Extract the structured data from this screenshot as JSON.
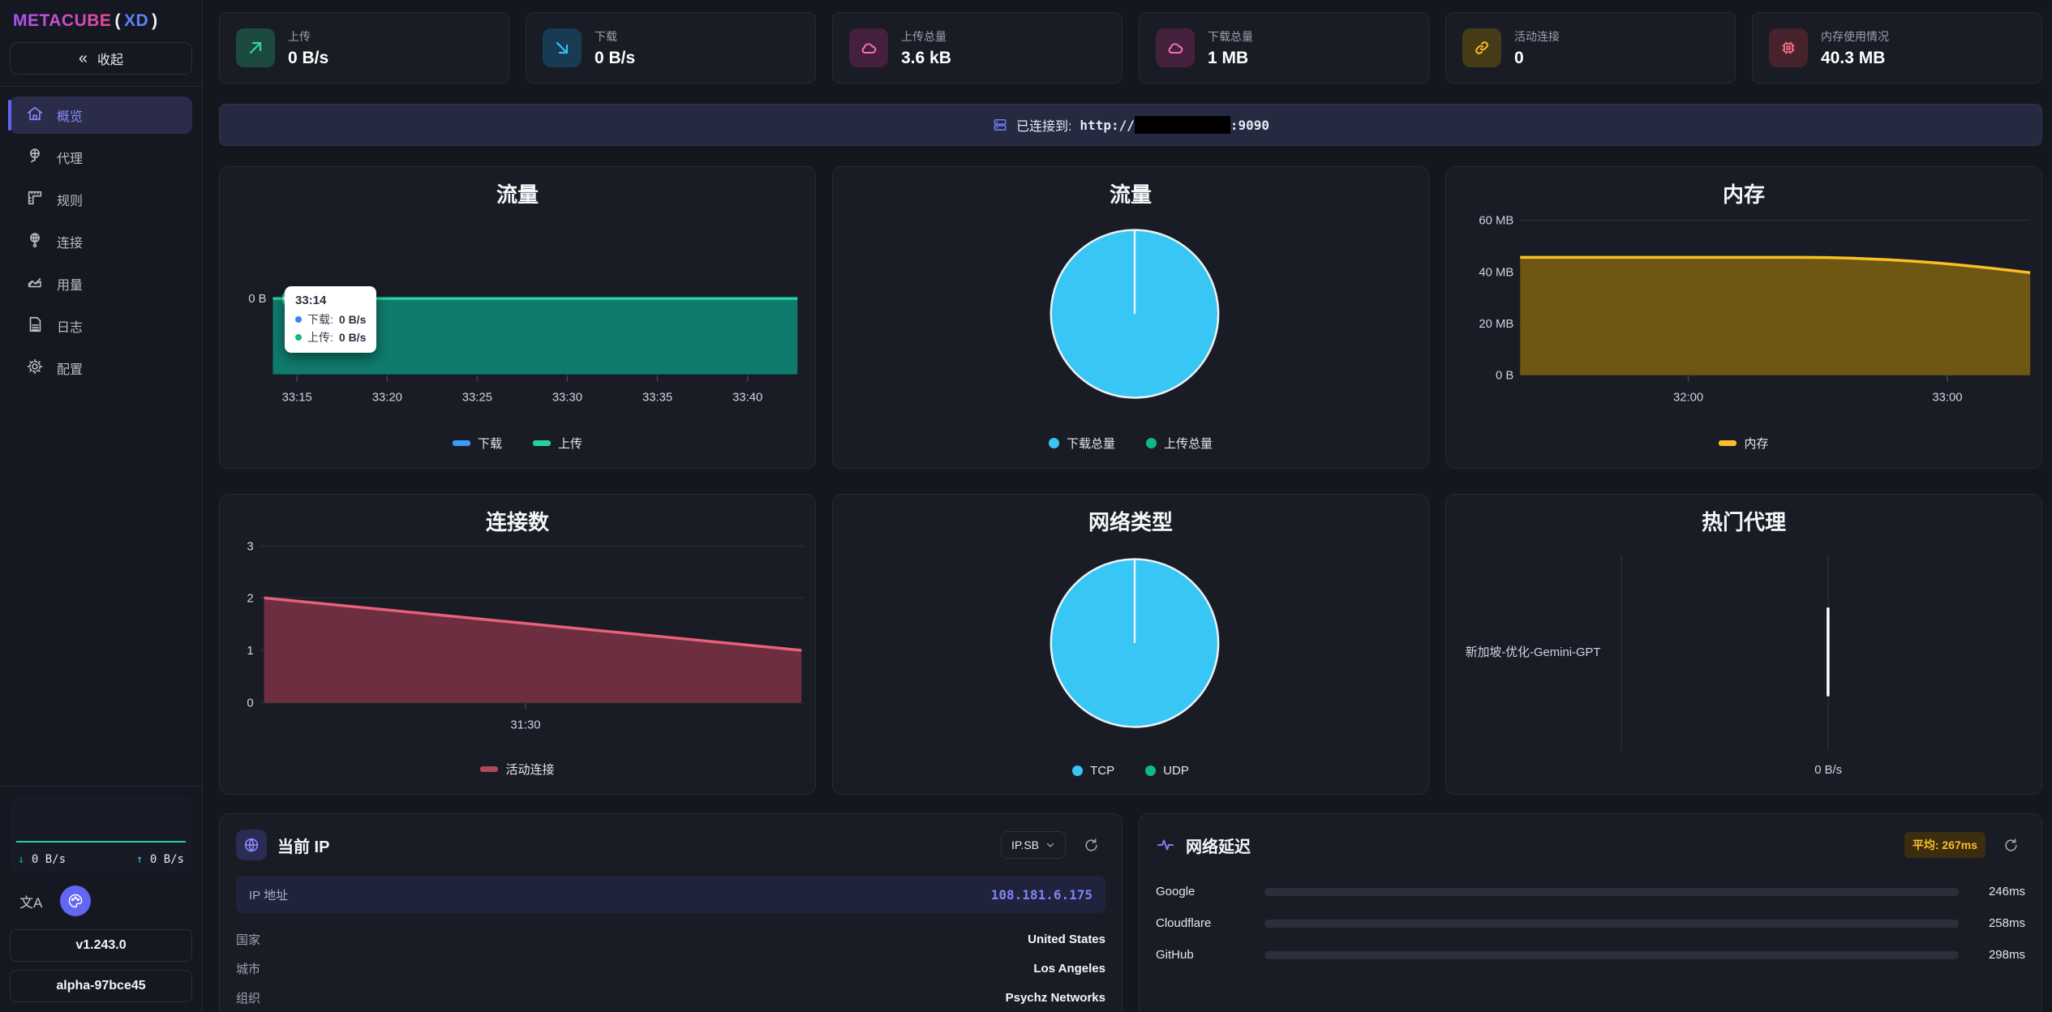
{
  "app": {
    "brand": "METACUBE",
    "paren_open": "(",
    "brand_suffix": "XD",
    "paren_close": ")"
  },
  "sidebar": {
    "collapse_icon": "«",
    "collapse_label": "收起",
    "items": [
      {
        "label": "概览",
        "active": true
      },
      {
        "label": "代理",
        "active": false
      },
      {
        "label": "规则",
        "active": false
      },
      {
        "label": "连接",
        "active": false
      },
      {
        "label": "用量",
        "active": false
      },
      {
        "label": "日志",
        "active": false
      },
      {
        "label": "配置",
        "active": false
      }
    ],
    "footer": {
      "down_arrow": "↓",
      "down_rate": "0 B/s",
      "up_arrow": "↑",
      "up_rate": "0 B/s",
      "lang_glyph": "文A",
      "version": "v1.243.0",
      "build": "alpha-97bce45"
    }
  },
  "stats": {
    "cards": [
      {
        "icon": "arrow-up-right",
        "label": "上传",
        "value": "0 B/s"
      },
      {
        "icon": "arrow-down-right",
        "label": "下载",
        "value": "0 B/s"
      },
      {
        "icon": "cloud",
        "label": "上传总量",
        "value": "3.6 kB"
      },
      {
        "icon": "cloud",
        "label": "下载总量",
        "value": "1 MB"
      },
      {
        "icon": "link",
        "label": "活动连接",
        "value": "0"
      },
      {
        "icon": "cpu",
        "label": "内存使用情况",
        "value": "40.3 MB"
      }
    ]
  },
  "connection": {
    "label": "已连接到:",
    "url_prefix": "http://",
    "url_suffix": ":9090"
  },
  "ip_card": {
    "title": "当前 IP",
    "provider": "IP.SB",
    "ip_label": "IP 地址",
    "ip": "108.181.6.175",
    "rows": [
      {
        "label": "国家",
        "value": "United States"
      },
      {
        "label": "城市",
        "value": "Los Angeles"
      },
      {
        "label": "组织",
        "value": "Psychz Networks"
      }
    ]
  },
  "latency": {
    "title": "网络延迟",
    "avg_badge": "平均: 267ms"
  },
  "chart_data": [
    {
      "type": "line",
      "title": "流量",
      "y_tick": "0 B",
      "x": [
        "33:15",
        "33:20",
        "33:25",
        "33:30",
        "33:35",
        "33:40"
      ],
      "series": [
        {
          "name": "下载",
          "color": "#3b9cf8",
          "values": [
            0,
            0,
            0,
            0,
            0,
            0
          ]
        },
        {
          "name": "上传",
          "color": "#25d0a2",
          "values": [
            0,
            0,
            0,
            0,
            0,
            0
          ]
        }
      ],
      "unit": "B/s",
      "tooltip": {
        "time": "33:14",
        "rows": [
          {
            "label": "下载:",
            "value": "0 B/s",
            "color": "#3b82f6"
          },
          {
            "label": "上传:",
            "value": "0 B/s",
            "color": "#10b981"
          }
        ]
      }
    },
    {
      "type": "pie",
      "title": "流量",
      "slices": [
        {
          "label": "下载总量",
          "value_bytes": 1000000,
          "color": "#38c6f4"
        },
        {
          "label": "上传总量",
          "value_bytes": 3600,
          "color": "#10b981"
        }
      ]
    },
    {
      "type": "area",
      "title": "内存",
      "y_ticks": [
        "60 MB",
        "40 MB",
        "20 MB",
        "0 B"
      ],
      "ylim_mb": [
        0,
        60
      ],
      "x_ticks": [
        "32:00",
        "33:00"
      ],
      "series": [
        {
          "name": "内存",
          "color": "#fbbf24",
          "approx_values_mb": [
            46,
            46,
            46,
            46,
            44,
            40.3
          ]
        }
      ]
    },
    {
      "type": "area",
      "title": "连接数",
      "y_ticks": [
        "3",
        "2",
        "1",
        "0"
      ],
      "ylim": [
        0,
        3
      ],
      "x_ticks": [
        "31:30"
      ],
      "series": [
        {
          "name": "活动连接",
          "color": "#e8607a",
          "approx_values": [
            2,
            1
          ]
        }
      ]
    },
    {
      "type": "pie",
      "title": "网络类型",
      "slices": [
        {
          "label": "TCP",
          "value_pct": 100,
          "color": "#38c6f4"
        },
        {
          "label": "UDP",
          "value_pct": 0,
          "color": "#10b981"
        }
      ]
    },
    {
      "type": "bar",
      "title": "热门代理",
      "orientation": "horizontal",
      "categories": [
        "新加坡-优化-Gemini-GPT"
      ],
      "values": [
        0
      ],
      "x_tick": "0 B/s",
      "unit": "B/s"
    },
    {
      "type": "bar",
      "title": "网络延迟",
      "categories": [
        "Google",
        "Cloudflare",
        "GitHub"
      ],
      "values_ms": [
        246,
        258,
        298
      ],
      "labels": [
        "246ms",
        "258ms",
        "298ms"
      ],
      "average_ms": 267,
      "scale_max_ms": 500,
      "bar_color": "#fbbf24"
    }
  ]
}
